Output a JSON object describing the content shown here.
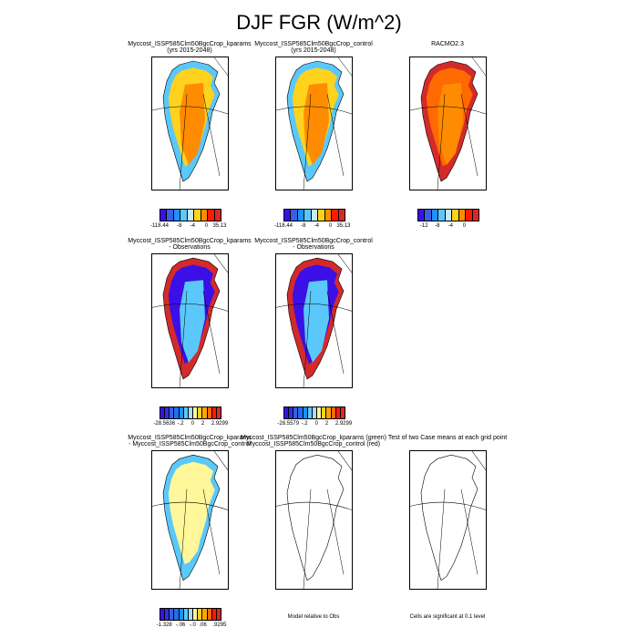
{
  "title": "DJF FGR (W/m^2)",
  "panels": [
    {
      "line1": "Myccost_ISSP585Clm50BgcCrop_kparams",
      "line2": "(yrs 2015-2048)",
      "colorbar": [
        "-118.44",
        "-8",
        "-4",
        "0",
        "35.13"
      ]
    },
    {
      "line1": "Myccost_ISSP585Clm50BgcCrop_control",
      "line2": "(yrs 2015-2048)",
      "colorbar": [
        "-118.44",
        "-8",
        "-4",
        "0",
        "35.13"
      ]
    },
    {
      "line1": "RACMO2.3",
      "line2": "",
      "colorbar": [
        "-12",
        "-8",
        "-4",
        "0"
      ]
    },
    {
      "line1": "Myccost_ISSP585Clm50BgcCrop_kparams",
      "line2": "- Observations",
      "colorbar": [
        "-28.5636",
        "-.2",
        "0",
        "2",
        "2.9299"
      ]
    },
    {
      "line1": "Myccost_ISSP585Clm50BgcCrop_control",
      "line2": "- Observations",
      "colorbar": [
        "-28.5579",
        "-.2",
        "0",
        "2",
        "2.9299"
      ]
    },
    {
      "line1": "Myccost_ISSP585Clm50BgcCrop_kparams",
      "line2": "- Myccost_ISSP585Clm50BgcCrop_control",
      "colorbar": [
        "-1.328",
        "-.06",
        "-.0",
        ".06",
        ".9295"
      ]
    },
    {
      "line1": "Myccost_ISSP585Clm50BgcCrop_kparams (green)",
      "line2": "Myccost_ISSP585Clm50BgcCrop_control (red)",
      "note": "Model relative to Obs"
    },
    {
      "line1": "Test of two Case means at each grid point",
      "line2": "",
      "note": "Cells are significant at 0.1 level"
    }
  ],
  "colors": {
    "bar9": [
      "#3a10e6",
      "#3a5fe0",
      "#1e90ff",
      "#5ac8fa",
      "#c6e8f7",
      "#ffd21e",
      "#ff8c00",
      "#ff1a00",
      "#d42a2a"
    ],
    "bar13": [
      "#3a10e6",
      "#3030e0",
      "#3a5fe0",
      "#1e70ef",
      "#1e90ff",
      "#5ac8fa",
      "#a8dcf5",
      "#fff799",
      "#ffd21e",
      "#ffa500",
      "#ff6a00",
      "#ff1a00",
      "#d42a2a"
    ]
  }
}
